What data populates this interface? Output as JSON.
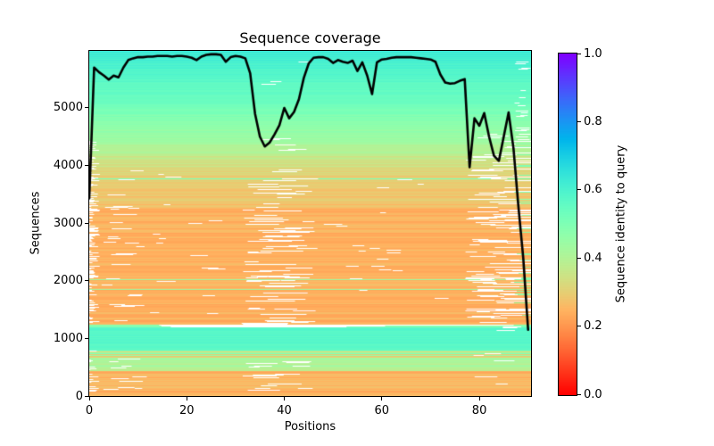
{
  "chart_data": {
    "type": "heatmap+line",
    "title": "Sequence coverage",
    "xlabel": "Positions",
    "ylabel": "Sequences",
    "xlim": [
      0,
      90.6
    ],
    "ylim": [
      0,
      5990
    ],
    "xticks": [
      0,
      20,
      40,
      60,
      80
    ],
    "yticks": [
      0,
      1000,
      2000,
      3000,
      4000,
      5000
    ],
    "grid": false,
    "legend": "none",
    "colormap": {
      "name": "rainbow_r",
      "stops": [
        {
          "value": 0.0,
          "color": "#ff0000"
        },
        {
          "value": 0.2,
          "color": "#ff964f"
        },
        {
          "value": 0.4,
          "color": "#b3f396"
        },
        {
          "value": 0.5,
          "color": "#80ffb4"
        },
        {
          "value": 0.6,
          "color": "#4df3ce"
        },
        {
          "value": 0.8,
          "color": "#1a96f3"
        },
        {
          "value": 1.0,
          "color": "#8000ff"
        }
      ]
    },
    "colorbar": {
      "label": "Sequence identity to query",
      "ticks": [
        0.0,
        0.2,
        0.4,
        0.6,
        0.8,
        1.0
      ],
      "tick_labels": [
        "0.0",
        "0.2",
        "0.4",
        "0.6",
        "0.8",
        "1.0"
      ]
    },
    "coverage_line": {
      "color": "#000000",
      "width": 2.6,
      "x_start": 0,
      "x_step": 1,
      "values": [
        3430,
        5700,
        5620,
        5560,
        5490,
        5560,
        5530,
        5700,
        5830,
        5860,
        5880,
        5880,
        5890,
        5890,
        5900,
        5900,
        5900,
        5890,
        5900,
        5900,
        5890,
        5870,
        5830,
        5890,
        5920,
        5930,
        5930,
        5920,
        5800,
        5880,
        5900,
        5890,
        5860,
        5600,
        4900,
        4500,
        4330,
        4400,
        4540,
        4700,
        5000,
        4820,
        4930,
        5150,
        5520,
        5770,
        5870,
        5880,
        5880,
        5850,
        5780,
        5830,
        5800,
        5780,
        5820,
        5640,
        5790,
        5560,
        5240,
        5790,
        5840,
        5850,
        5870,
        5880,
        5880,
        5880,
        5880,
        5870,
        5860,
        5850,
        5840,
        5800,
        5580,
        5440,
        5420,
        5430,
        5470,
        5500,
        3970,
        4820,
        4690,
        4910,
        4500,
        4170,
        4080,
        4500,
        4920,
        4300,
        3300,
        2400,
        1150
      ]
    },
    "msa_bands": [
      {
        "seq": [
          0,
          130
        ],
        "identity": [
          0.24,
          0.24
        ],
        "jitter": 0.025
      },
      {
        "seq": [
          130,
          430
        ],
        "identity": [
          0.25,
          0.25
        ],
        "jitter": 0.025,
        "green_prob": 0.04
      },
      {
        "seq": [
          430,
          660
        ],
        "identity": [
          0.41,
          0.41
        ],
        "jitter": 0.035
      },
      {
        "seq": [
          660,
          790
        ],
        "identity": [
          0.3,
          0.3
        ],
        "jitter": 0.025,
        "green_prob": 0.18
      },
      {
        "seq": [
          790,
          1190
        ],
        "identity": [
          0.57,
          0.58
        ],
        "jitter": 0.015
      },
      {
        "seq": [
          1190,
          1235
        ],
        "identity": [
          0.5,
          0.5
        ],
        "jitter": 0.02
      },
      {
        "seq": [
          1235,
          3280
        ],
        "identity": [
          0.245,
          0.245
        ],
        "jitter": 0.025,
        "green_prob": 0.025
      },
      {
        "seq": [
          3280,
          3960
        ],
        "identity": [
          0.27,
          0.32
        ],
        "jitter": 0.025,
        "green_prob": 0.02
      },
      {
        "seq": [
          3960,
          4430
        ],
        "identity": [
          0.33,
          0.43
        ],
        "jitter": 0.03
      },
      {
        "seq": [
          4430,
          4980
        ],
        "identity": [
          0.44,
          0.51
        ],
        "jitter": 0.02
      },
      {
        "seq": [
          4980,
          5990
        ],
        "identity": [
          0.52,
          0.63
        ],
        "jitter": 0.015
      }
    ],
    "gap_clusters": [
      {
        "name": "left-edge-bottom",
        "seq": [
          0,
          790
        ],
        "x": [
          0,
          2.2
        ],
        "prob": 0.4,
        "mode": "left"
      },
      {
        "name": "left-edge-mid",
        "seq": [
          1235,
          4430
        ],
        "x": [
          0,
          2.2
        ],
        "prob": 0.5,
        "mode": "left"
      },
      {
        "name": "left-scatter-bottom",
        "seq": [
          0,
          700
        ],
        "x": [
          2,
          12
        ],
        "prob": 0.22,
        "len": [
          1.5,
          5
        ],
        "segs": 1
      },
      {
        "name": "left-scatter-mid",
        "seq": [
          1235,
          3960
        ],
        "x": [
          2,
          12
        ],
        "prob": 0.16,
        "len": [
          1.5,
          5
        ],
        "segs": 1
      },
      {
        "name": "mid-cluster-bottom",
        "seq": [
          30,
          700
        ],
        "x": [
          31,
          46
        ],
        "prob": 0.3,
        "len": [
          2,
          7
        ],
        "segs": 2
      },
      {
        "name": "mid-cluster-main",
        "seq": [
          1235,
          3960
        ],
        "x": [
          31,
          47
        ],
        "prob": 0.38,
        "len": [
          2,
          8
        ],
        "segs": 2
      },
      {
        "name": "mid-cluster-upper",
        "seq": [
          3960,
          4500
        ],
        "x": [
          33,
          45
        ],
        "prob": 0.15,
        "len": [
          2,
          5
        ],
        "segs": 1
      },
      {
        "name": "mid-scatter-left",
        "seq": [
          1235,
          3960
        ],
        "x": [
          12,
          31
        ],
        "prob": 0.1,
        "len": [
          1,
          4
        ],
        "segs": 1
      },
      {
        "name": "mid-scatter-right",
        "seq": [
          1235,
          3960
        ],
        "x": [
          47,
          76
        ],
        "prob": 0.07,
        "len": [
          1,
          4
        ],
        "segs": 1
      },
      {
        "name": "x58-scatter",
        "seq": [
          1700,
          3700
        ],
        "x": [
          55,
          62
        ],
        "prob": 0.06,
        "len": [
          1,
          3
        ],
        "segs": 1
      },
      {
        "name": "right-cluster",
        "seq": [
          1265,
          4200
        ],
        "x": [
          77,
          86
        ],
        "prob": 0.3,
        "len": [
          2,
          6
        ],
        "segs": 2
      },
      {
        "name": "right-truncate",
        "seq": [
          1400,
          4430
        ],
        "x": [
          82,
          90.6
        ],
        "prob": 0.28,
        "mode": "truncate",
        "cterm_green": 0.45
      },
      {
        "name": "right-edge-top",
        "seq": [
          4430,
          5800
        ],
        "x": [
          87,
          90.6
        ],
        "prob": 0.17,
        "len": [
          1,
          3
        ],
        "segs": 1
      },
      {
        "name": "right-upper-green",
        "seq": [
          4430,
          4980
        ],
        "x": [
          78,
          90.6
        ],
        "prob": 0.2,
        "len": [
          2,
          6
        ],
        "segs": 1
      },
      {
        "name": "top-small",
        "seq": [
          5300,
          5670
        ],
        "x": [
          33,
          40
        ],
        "prob": 0.1,
        "len": [
          1,
          3
        ],
        "segs": 1
      },
      {
        "name": "white-row",
        "seq": [
          1190,
          1235
        ],
        "x": [
          1,
          90
        ],
        "prob": 0.95,
        "len": [
          18,
          48
        ],
        "segs": 3
      },
      {
        "name": "tealband-top-right",
        "seq": [
          1130,
          1235
        ],
        "x": [
          83,
          89
        ],
        "prob": 0.3,
        "len": [
          2,
          4
        ],
        "segs": 1
      },
      {
        "name": "tealband-gap",
        "seq": [
          1080,
          1190
        ],
        "x": [
          49,
          52.5
        ],
        "prob": 0.12,
        "len": [
          1,
          2
        ],
        "segs": 1
      },
      {
        "name": "top-sparse",
        "seq": [
          4430,
          5990
        ],
        "x": [
          5,
          85
        ],
        "prob": 0.03,
        "len": [
          1,
          2.5
        ],
        "segs": 1
      },
      {
        "name": "bottom-right-scatter",
        "seq": [
          0,
          790
        ],
        "x": [
          77,
          88
        ],
        "prob": 0.15,
        "len": [
          2,
          5
        ],
        "segs": 1
      }
    ]
  }
}
